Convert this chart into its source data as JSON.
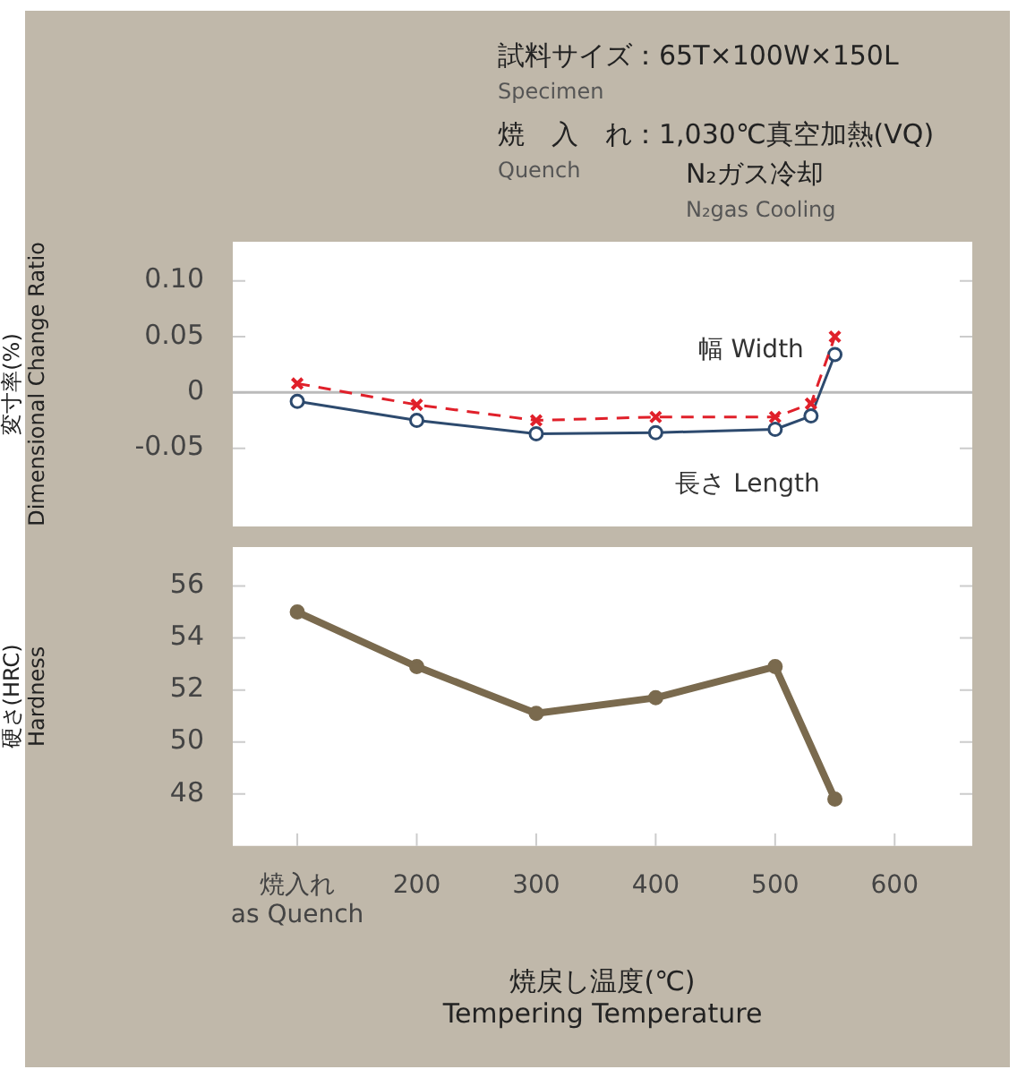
{
  "chart_data": [
    {
      "type": "line",
      "annotations": [
        "試料サイズ：65T×100W×150L",
        "Specimen",
        "焼　入　れ：1,030℃真空加熱(VQ)",
        "Quench",
        "N₂ガス冷却",
        "N₂gas Cooling"
      ],
      "ylabel": "変寸率(%)\nDimensional Change Ratio",
      "x": [
        100,
        200,
        300,
        400,
        500,
        530,
        550
      ],
      "series": [
        {
          "name": "幅 Width",
          "color": "#e0202a",
          "values": [
            0.008,
            -0.011,
            -0.025,
            -0.022,
            -0.022,
            -0.01,
            0.05
          ],
          "marker": "cross",
          "line_style": "dashed"
        },
        {
          "name": "長さ Length",
          "color": "#2d4a6e",
          "values": [
            -0.008,
            -0.025,
            -0.037,
            -0.036,
            -0.033,
            -0.021,
            0.034
          ],
          "marker": "circle",
          "line_style": "solid"
        }
      ],
      "xlim": [
        46,
        665
      ],
      "ylim": [
        -0.12,
        0.135
      ],
      "yticks": [
        {
          "value": -0.05,
          "label": "-0.05"
        },
        0,
        0.05,
        {
          "value": 0.1,
          "label": "0.10"
        }
      ],
      "ref_lines": [
        {
          "axis": "y",
          "value": 0,
          "color": "#bbbbbb"
        }
      ],
      "tick_labels": "y",
      "legend": false,
      "grid": false
    },
    {
      "type": "line",
      "ylabel": "硬さ(HRC)\nHardness",
      "xlabel": "焼戻し温度(℃)\nTempering Temperature",
      "x": [
        100,
        200,
        300,
        400,
        500,
        550
      ],
      "series": [
        {
          "color": "#7a6a4e",
          "values": [
            55.0,
            52.9,
            51.1,
            51.7,
            52.9,
            47.8
          ]
        }
      ],
      "marker": "circle",
      "line_style": "solid",
      "xlim": [
        46,
        665
      ],
      "xticks": [
        {
          "value": 100,
          "label": "焼入れ\nas Quench"
        },
        200,
        300,
        400,
        500,
        600
      ],
      "ylim": [
        46,
        57.5
      ],
      "yticks": [
        48,
        50,
        52,
        54,
        56
      ],
      "legend": false,
      "grid": false
    }
  ]
}
